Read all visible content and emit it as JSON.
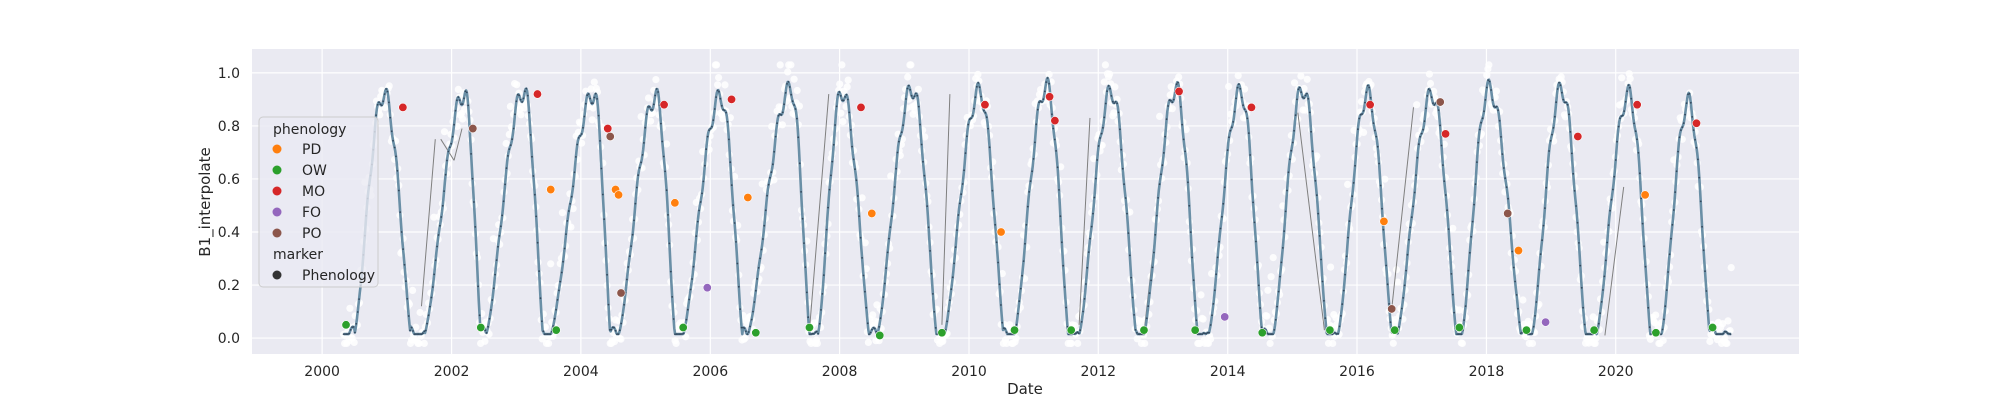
{
  "chart_data": {
    "type": "scatter",
    "title": "",
    "xlabel": "Date",
    "ylabel": "B1_interpolate",
    "xlim": [
      "1998-12-01",
      "2022-11-01"
    ],
    "ylim": [
      -0.06,
      1.09
    ],
    "x_ticks": [
      "2000",
      "2002",
      "2004",
      "2006",
      "2008",
      "2010",
      "2012",
      "2014",
      "2016",
      "2018",
      "2020"
    ],
    "y_ticks": [
      "0.0",
      "0.2",
      "0.4",
      "0.6",
      "0.8",
      "1.0"
    ],
    "grid": true,
    "legend_position": "left",
    "colors": {
      "background": "#eaeaf2",
      "grid": "#ffffff",
      "raw": "#ffffff",
      "curve": "#6a8fa6",
      "curve_dots": "#34495e",
      "connector": "#7f7f7f",
      "PD": "#ff7f0e",
      "OW": "#2ca02c",
      "MO": "#d62728",
      "FO": "#9467bd",
      "PO": "#8c564b"
    },
    "legend": {
      "hue_title": "phenology",
      "entries": [
        "PD",
        "OW",
        "MO",
        "FO",
        "PO"
      ],
      "style_title": "marker",
      "style_entries": [
        "Phenology"
      ]
    },
    "seasons": [
      {
        "start": "2000-07-01",
        "peak": "2000-12-15",
        "end": "2001-05-15",
        "max": 0.92
      },
      {
        "start": "2001-08-01",
        "peak": "2002-03-15",
        "end": "2002-06-15",
        "max": 0.92
      },
      {
        "start": "2002-07-15",
        "peak": "2003-02-15",
        "end": "2003-06-01",
        "max": 0.93
      },
      {
        "start": "2003-07-15",
        "peak": "2004-03-15",
        "end": "2004-06-15",
        "max": 0.92
      },
      {
        "start": "2004-08-01",
        "peak": "2005-03-01",
        "end": "2005-06-15",
        "max": 0.91
      },
      {
        "start": "2005-08-01",
        "peak": "2006-03-01",
        "end": "2006-07-01",
        "max": 0.91
      },
      {
        "start": "2006-08-01",
        "peak": "2007-04-01",
        "end": "2007-07-15",
        "max": 0.94
      },
      {
        "start": "2007-09-01",
        "peak": "2008-01-15",
        "end": "2008-06-15",
        "max": 0.93
      },
      {
        "start": "2008-08-01",
        "peak": "2009-02-15",
        "end": "2009-07-01",
        "max": 0.94
      },
      {
        "start": "2009-08-15",
        "peak": "2010-03-01",
        "end": "2010-07-15",
        "max": 0.93
      },
      {
        "start": "2010-09-15",
        "peak": "2011-03-15",
        "end": "2011-07-15",
        "max": 0.95
      },
      {
        "start": "2011-09-15",
        "peak": "2012-03-15",
        "end": "2012-08-01",
        "max": 0.93
      },
      {
        "start": "2012-09-15",
        "peak": "2013-03-15",
        "end": "2013-07-15",
        "max": 0.94
      },
      {
        "start": "2013-09-15",
        "peak": "2014-03-15",
        "end": "2014-07-15",
        "max": 0.93
      },
      {
        "start": "2014-09-15",
        "peak": "2015-03-01",
        "end": "2015-07-15",
        "max": 0.94
      },
      {
        "start": "2015-09-15",
        "peak": "2016-03-01",
        "end": "2016-07-15",
        "max": 0.92
      },
      {
        "start": "2016-08-15",
        "peak": "2017-03-01",
        "end": "2017-07-15",
        "max": 0.92
      },
      {
        "start": "2017-08-15",
        "peak": "2018-01-15",
        "end": "2018-07-15",
        "max": 0.94
      },
      {
        "start": "2018-09-15",
        "peak": "2019-03-01",
        "end": "2019-07-15",
        "max": 0.94
      },
      {
        "start": "2019-09-15",
        "peak": "2020-03-15",
        "end": "2020-07-15",
        "max": 0.92
      },
      {
        "start": "2020-09-15",
        "peak": "2021-02-15",
        "end": "2021-06-15",
        "max": 0.89
      }
    ],
    "connector_segments": [
      [
        [
          "2001-07-15",
          0.12
        ],
        [
          "2001-10-01",
          0.75
        ]
      ],
      [
        [
          "2001-11-01",
          0.75
        ],
        [
          "2002-01-15",
          0.67
        ]
      ],
      [
        [
          "2002-01-15",
          0.67
        ],
        [
          "2002-03-01",
          0.79
        ]
      ],
      [
        [
          "2007-07-15",
          0.03
        ],
        [
          "2007-11-01",
          0.92
        ]
      ],
      [
        [
          "2009-08-01",
          0.05
        ],
        [
          "2009-09-15",
          0.92
        ]
      ],
      [
        [
          "2011-09-15",
          0.05
        ],
        [
          "2011-11-15",
          0.83
        ]
      ],
      [
        [
          "2012-09-15",
          0.02
        ],
        [
          "2012-11-15",
          0.38
        ]
      ],
      [
        [
          "2015-02-01",
          0.85
        ],
        [
          "2015-07-01",
          0.03
        ]
      ],
      [
        [
          "2016-07-15",
          0.11
        ],
        [
          "2016-11-15",
          0.87
        ]
      ],
      [
        [
          "2019-11-01",
          0.01
        ],
        [
          "2020-02-15",
          0.57
        ]
      ]
    ],
    "phenology_points": [
      {
        "x": "2000-05-15",
        "y": 0.05,
        "phenology": "OW"
      },
      {
        "x": "2001-04-01",
        "y": 0.87,
        "phenology": "MO"
      },
      {
        "x": "2002-06-15",
        "y": 0.04,
        "phenology": "OW"
      },
      {
        "x": "2002-05-01",
        "y": 0.79,
        "phenology": "PO"
      },
      {
        "x": "2003-05-01",
        "y": 0.92,
        "phenology": "MO"
      },
      {
        "x": "2003-07-15",
        "y": 0.56,
        "phenology": "PD"
      },
      {
        "x": "2003-08-15",
        "y": 0.03,
        "phenology": "OW"
      },
      {
        "x": "2004-06-01",
        "y": 0.79,
        "phenology": "MO"
      },
      {
        "x": "2004-06-15",
        "y": 0.76,
        "phenology": "PO"
      },
      {
        "x": "2004-07-15",
        "y": 0.56,
        "phenology": "PD"
      },
      {
        "x": "2004-08-01",
        "y": 0.54,
        "phenology": "PD"
      },
      {
        "x": "2004-08-15",
        "y": 0.17,
        "phenology": "PO"
      },
      {
        "x": "2005-04-15",
        "y": 0.88,
        "phenology": "MO"
      },
      {
        "x": "2005-06-15",
        "y": 0.51,
        "phenology": "PD"
      },
      {
        "x": "2005-08-01",
        "y": 0.04,
        "phenology": "OW"
      },
      {
        "x": "2005-12-15",
        "y": 0.19,
        "phenology": "FO"
      },
      {
        "x": "2006-05-01",
        "y": 0.9,
        "phenology": "MO"
      },
      {
        "x": "2006-08-01",
        "y": 0.53,
        "phenology": "PD"
      },
      {
        "x": "2006-09-15",
        "y": 0.02,
        "phenology": "OW"
      },
      {
        "x": "2007-07-15",
        "y": 0.04,
        "phenology": "OW"
      },
      {
        "x": "2008-05-01",
        "y": 0.87,
        "phenology": "MO"
      },
      {
        "x": "2008-07-01",
        "y": 0.47,
        "phenology": "PD"
      },
      {
        "x": "2008-08-15",
        "y": 0.01,
        "phenology": "OW"
      },
      {
        "x": "2009-08-01",
        "y": 0.02,
        "phenology": "OW"
      },
      {
        "x": "2010-04-01",
        "y": 0.88,
        "phenology": "MO"
      },
      {
        "x": "2010-07-01",
        "y": 0.4,
        "phenology": "PD"
      },
      {
        "x": "2010-09-15",
        "y": 0.03,
        "phenology": "OW"
      },
      {
        "x": "2011-04-01",
        "y": 0.91,
        "phenology": "MO"
      },
      {
        "x": "2011-05-01",
        "y": 0.82,
        "phenology": "MO"
      },
      {
        "x": "2011-08-01",
        "y": 0.03,
        "phenology": "OW"
      },
      {
        "x": "2012-09-15",
        "y": 0.03,
        "phenology": "OW"
      },
      {
        "x": "2013-04-01",
        "y": 0.93,
        "phenology": "MO"
      },
      {
        "x": "2013-07-01",
        "y": 0.03,
        "phenology": "OW"
      },
      {
        "x": "2013-12-15",
        "y": 0.08,
        "phenology": "FO"
      },
      {
        "x": "2014-05-15",
        "y": 0.87,
        "phenology": "MO"
      },
      {
        "x": "2014-07-15",
        "y": 0.02,
        "phenology": "OW"
      },
      {
        "x": "2015-08-01",
        "y": 0.03,
        "phenology": "OW"
      },
      {
        "x": "2016-03-15",
        "y": 0.88,
        "phenology": "MO"
      },
      {
        "x": "2016-06-01",
        "y": 0.44,
        "phenology": "PD"
      },
      {
        "x": "2016-07-15",
        "y": 0.11,
        "phenology": "PO"
      },
      {
        "x": "2016-08-01",
        "y": 0.03,
        "phenology": "OW"
      },
      {
        "x": "2017-04-15",
        "y": 0.89,
        "phenology": "PO"
      },
      {
        "x": "2017-05-15",
        "y": 0.77,
        "phenology": "MO"
      },
      {
        "x": "2017-08-01",
        "y": 0.04,
        "phenology": "OW"
      },
      {
        "x": "2018-05-01",
        "y": 0.47,
        "phenology": "PO"
      },
      {
        "x": "2018-07-01",
        "y": 0.33,
        "phenology": "PD"
      },
      {
        "x": "2018-08-15",
        "y": 0.03,
        "phenology": "OW"
      },
      {
        "x": "2018-12-01",
        "y": 0.06,
        "phenology": "FO"
      },
      {
        "x": "2019-06-01",
        "y": 0.76,
        "phenology": "MO"
      },
      {
        "x": "2019-09-01",
        "y": 0.03,
        "phenology": "OW"
      },
      {
        "x": "2020-05-01",
        "y": 0.88,
        "phenology": "MO"
      },
      {
        "x": "2020-06-15",
        "y": 0.54,
        "phenology": "PD"
      },
      {
        "x": "2020-08-15",
        "y": 0.02,
        "phenology": "OW"
      },
      {
        "x": "2021-04-01",
        "y": 0.81,
        "phenology": "MO"
      },
      {
        "x": "2021-07-01",
        "y": 0.04,
        "phenology": "OW"
      }
    ]
  }
}
